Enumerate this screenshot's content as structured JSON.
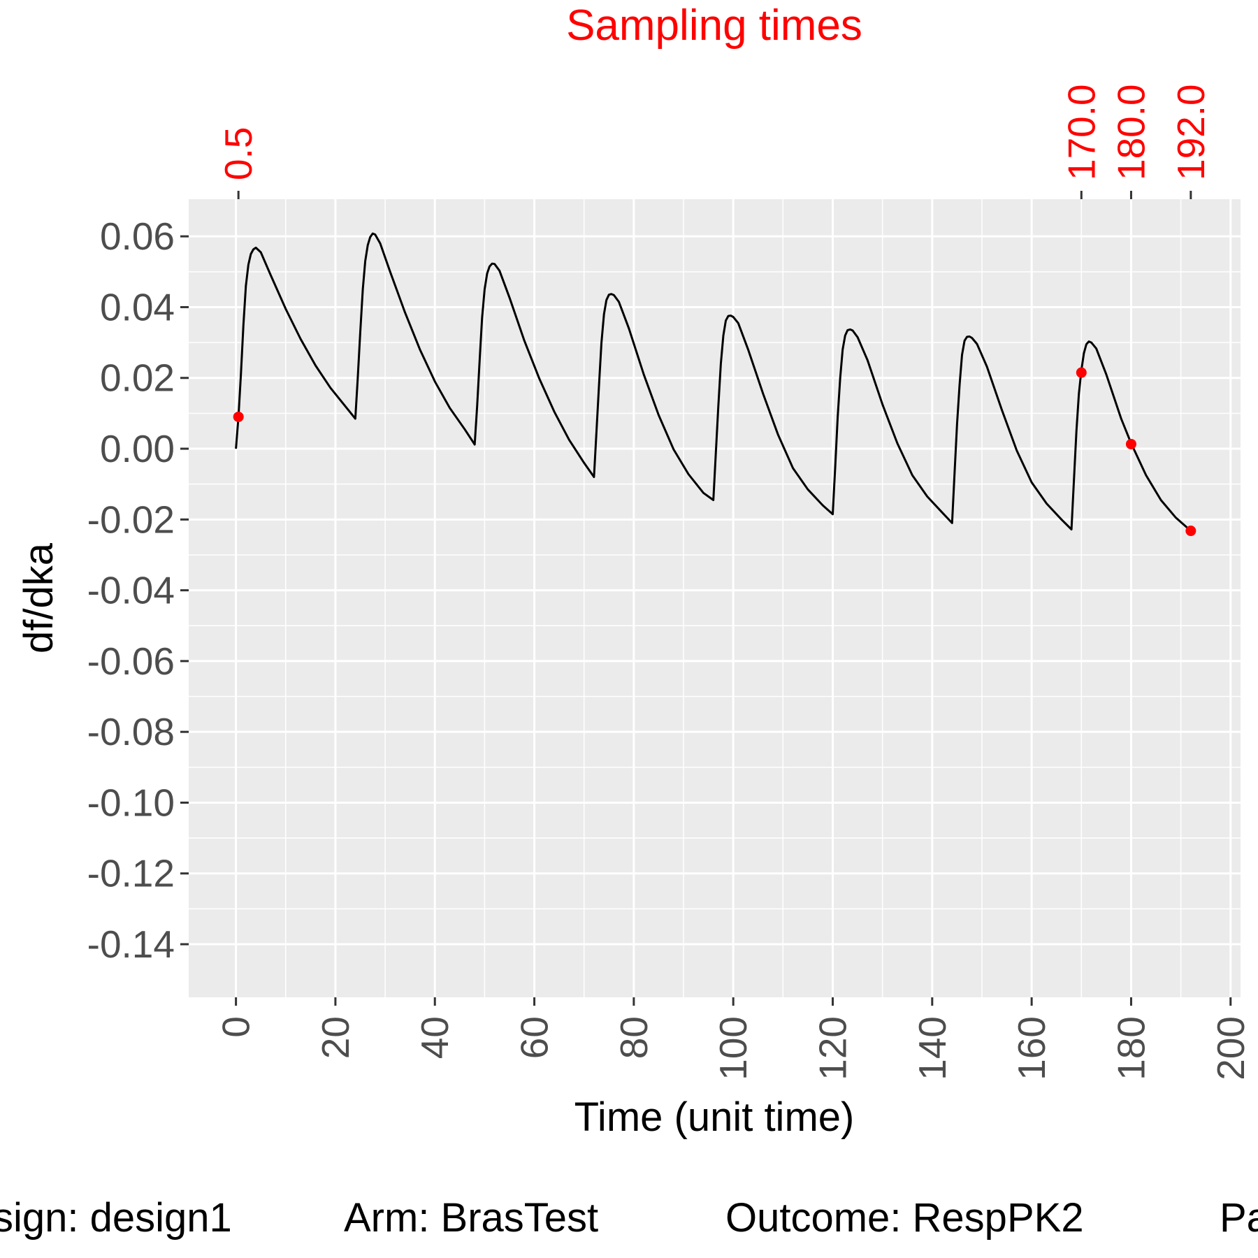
{
  "chart_data": {
    "type": "line",
    "title": "Sampling times",
    "xlabel": "Time (unit time)",
    "ylabel": "df/dka",
    "xlim": [
      -9.5,
      202
    ],
    "ylim": [
      -0.155,
      0.0705
    ],
    "x_ticks": [
      "0",
      "20",
      "40",
      "60",
      "80",
      "100",
      "120",
      "140",
      "160",
      "180",
      "200"
    ],
    "y_ticks": [
      "0.06",
      "0.04",
      "0.02",
      "0.00",
      "-0.02",
      "-0.04",
      "-0.06",
      "-0.08",
      "-0.10",
      "-0.12",
      "-0.14"
    ],
    "grid": true,
    "series": [
      {
        "color": "#000000",
        "x": [
          0,
          0.5,
          1,
          1.5,
          2,
          2.5,
          3,
          3.5,
          4,
          5,
          7,
          10,
          13,
          16,
          19,
          22,
          24,
          24.5,
          25,
          25.5,
          26,
          26.5,
          27,
          27.5,
          28,
          29,
          31,
          34,
          37,
          40,
          43,
          46,
          48,
          48.5,
          49,
          49.5,
          50,
          50.5,
          51,
          51.5,
          52,
          53,
          55,
          58,
          61,
          64,
          67,
          70,
          72,
          72.5,
          73,
          73.5,
          74,
          74.5,
          75,
          75.5,
          76,
          77,
          79,
          82,
          85,
          88,
          91,
          94,
          96,
          96.5,
          97,
          97.5,
          98,
          98.5,
          99,
          99.5,
          100,
          101,
          103,
          106,
          109,
          112,
          115,
          118,
          120,
          120.5,
          121,
          121.5,
          122,
          122.5,
          123,
          123.5,
          124,
          125,
          127,
          130,
          133,
          136,
          139,
          142,
          144,
          144.5,
          145,
          145.5,
          146,
          146.5,
          147,
          147.5,
          148,
          149,
          151,
          154,
          157,
          160,
          163,
          166,
          168,
          168.5,
          169,
          169.5,
          170,
          170.5,
          171,
          171.5,
          172,
          173,
          175,
          178,
          180,
          183,
          186,
          189,
          192
        ],
        "y": [
          0.0,
          0.009,
          0.021,
          0.035,
          0.046,
          0.052,
          0.055,
          0.0563,
          0.0568,
          0.0555,
          0.049,
          0.0395,
          0.031,
          0.0235,
          0.0172,
          0.012,
          0.0085,
          0.02,
          0.033,
          0.045,
          0.053,
          0.0575,
          0.0598,
          0.0608,
          0.0605,
          0.058,
          0.05,
          0.0385,
          0.028,
          0.019,
          0.0115,
          0.0055,
          0.0012,
          0.012,
          0.025,
          0.037,
          0.045,
          0.0495,
          0.0515,
          0.0523,
          0.0522,
          0.0503,
          0.0427,
          0.0305,
          0.0198,
          0.0105,
          0.0025,
          -0.004,
          -0.008,
          0.005,
          0.018,
          0.03,
          0.038,
          0.042,
          0.0435,
          0.0437,
          0.0434,
          0.0415,
          0.034,
          0.021,
          0.0095,
          -0.0002,
          -0.0072,
          -0.0125,
          -0.0145,
          -0.001,
          0.012,
          0.024,
          0.032,
          0.0362,
          0.0375,
          0.0376,
          0.0372,
          0.0355,
          0.028,
          0.0155,
          0.004,
          -0.0055,
          -0.0115,
          -0.016,
          -0.0185,
          -0.005,
          0.009,
          0.02,
          0.028,
          0.032,
          0.0335,
          0.0337,
          0.0334,
          0.0315,
          0.025,
          0.0125,
          0.0015,
          -0.0075,
          -0.0135,
          -0.018,
          -0.021,
          -0.007,
          0.007,
          0.018,
          0.0265,
          0.0305,
          0.0316,
          0.0317,
          0.0313,
          0.0296,
          0.0232,
          0.011,
          -0.0005,
          -0.0095,
          -0.0155,
          -0.02,
          -0.0228,
          -0.009,
          0.005,
          0.0155,
          0.0222,
          0.027,
          0.0295,
          0.0303,
          0.03,
          0.0283,
          0.021,
          0.0085,
          0.0015,
          -0.0075,
          -0.0145,
          -0.0195,
          -0.0232
        ]
      }
    ],
    "sampling_points": {
      "color": "#ff0000",
      "x": [
        0.5,
        170,
        180,
        192
      ],
      "y": [
        0.009,
        0.0215,
        0.0013,
        -0.0232
      ],
      "labels": [
        "0.5",
        "170.0",
        "180.0",
        "192.0"
      ]
    }
  },
  "caption": {
    "design": "sign: design1",
    "arm": "Arm: BrasTest",
    "outcome": "Outcome: RespPK2",
    "param": "Pa"
  },
  "colors": {
    "panel": "#ebebeb",
    "grid_major": "#ffffff",
    "sampling": "#ff0000"
  }
}
